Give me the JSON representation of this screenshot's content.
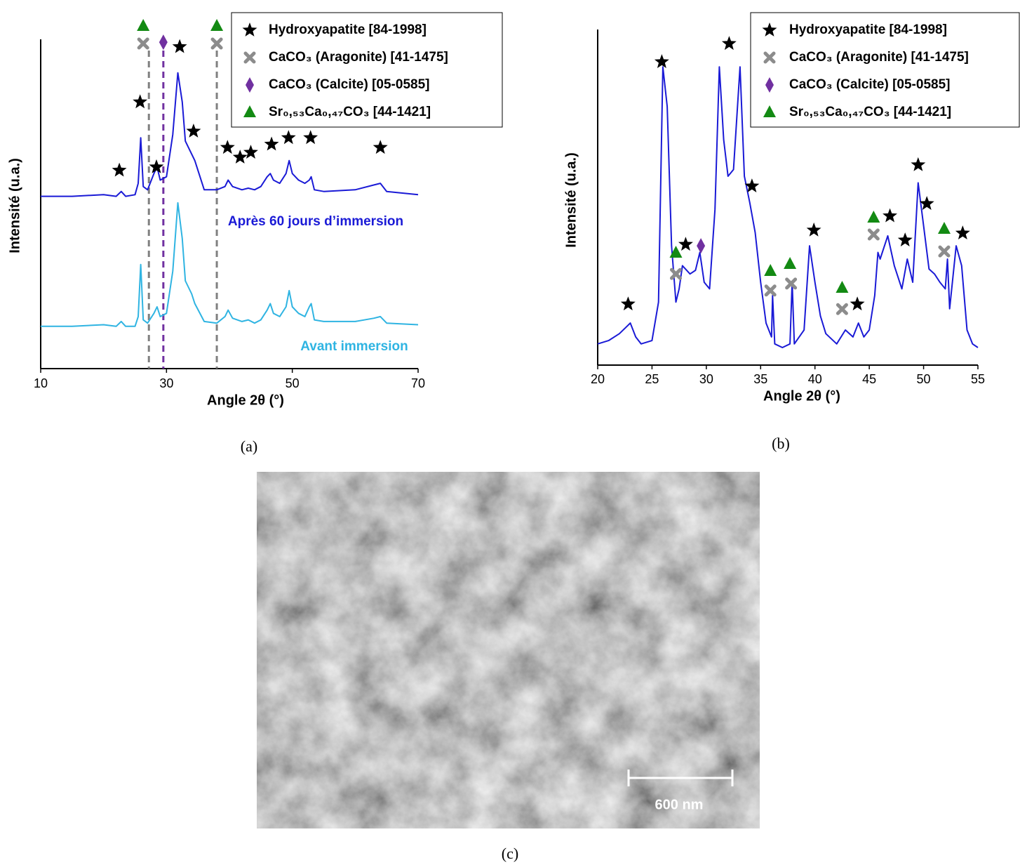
{
  "chart_data": [
    {
      "type": "line",
      "caption": "(a)",
      "xlabel": "Angle 2θ (°)",
      "ylabel": "Intensité (u.a.)",
      "xlim": [
        10,
        70
      ],
      "xticks": [
        10,
        30,
        50,
        70
      ],
      "ylim": [
        0,
        100
      ],
      "x": [
        10,
        15,
        20,
        22,
        22.8,
        23.5,
        25,
        25.5,
        25.9,
        26.3,
        27,
        28,
        28.5,
        29,
        30,
        31,
        31.8,
        32.5,
        33,
        34,
        34.5,
        36,
        38,
        39.3,
        39.8,
        40.5,
        42,
        43,
        44,
        45,
        46,
        46.5,
        47,
        48,
        49,
        49.5,
        50,
        51,
        52,
        52.7,
        53,
        53.5,
        55,
        60,
        63,
        64,
        65,
        70
      ],
      "series": [
        {
          "name": "Après 60 jours d’immersion",
          "color": "#1a1ad6",
          "values": [
            53,
            53,
            53.5,
            53,
            54.5,
            53,
            53.5,
            57,
            71,
            56,
            55,
            60,
            62,
            58,
            59,
            72,
            91,
            82,
            70,
            66,
            64,
            55,
            55,
            56,
            58,
            56,
            55,
            55.5,
            55,
            56,
            59,
            60,
            58,
            57,
            60,
            64,
            60,
            58,
            57,
            58,
            59,
            55,
            54.5,
            55,
            56.5,
            57,
            54.5,
            53.5
          ]
        },
        {
          "name": "Avant immersion",
          "color": "#2fb4e2",
          "values": [
            13,
            13,
            13.5,
            13,
            14.5,
            13,
            13,
            16,
            32,
            15,
            14,
            17,
            19,
            16,
            17,
            30,
            51,
            40,
            27,
            23,
            20,
            14.5,
            14,
            16,
            18,
            15.5,
            14.5,
            15,
            14,
            15,
            18,
            20,
            17,
            16,
            19,
            24,
            19,
            17,
            16,
            19,
            20,
            15,
            14.5,
            14.5,
            15.5,
            16,
            14,
            13.5
          ]
        }
      ],
      "reference_lines": [
        {
          "x": 27.2,
          "color": "#808080"
        },
        {
          "x": 29.5,
          "color": "#7030a0"
        },
        {
          "x": 38.0,
          "color": "#808080"
        }
      ],
      "phases": [
        {
          "name": "Hydroxyapatite [84-1998]",
          "marker": "star",
          "color": "#000000",
          "x": [
            22.5,
            25.8,
            28.4,
            32.1,
            34.3,
            39.7,
            41.7,
            43.4,
            46.7,
            49.4,
            52.9,
            64.0
          ],
          "y": [
            61,
            82,
            62,
            99,
            73,
            68,
            65,
            66.5,
            69,
            71,
            71,
            68
          ]
        },
        {
          "name": "CaCO₃ (Aragonite) [41-1475]",
          "marker": "cross",
          "color": "#8c8c8c",
          "x": [
            26.3,
            38.0
          ],
          "y": [
            100,
            100
          ]
        },
        {
          "name": "CaCO₃ (Calcite) [05-0585]",
          "marker": "diamond",
          "color": "#7030a0",
          "x": [
            29.5
          ],
          "y": [
            100.4
          ]
        },
        {
          "name": "Sr₀,₅₃Ca₀,₄₇CO₃ [44-1421]",
          "marker": "triangle",
          "color": "#138a13",
          "x": [
            26.3,
            38.0
          ],
          "y": [
            105.4,
            105.4
          ]
        }
      ]
    },
    {
      "type": "line",
      "caption": "(b)",
      "xlabel": "Angle 2θ (°)",
      "ylabel": "Intensité (u.a.)",
      "xlim": [
        20,
        55
      ],
      "xticks": [
        20,
        25,
        30,
        35,
        40,
        45,
        50,
        55
      ],
      "ylim": [
        0,
        100
      ],
      "x": [
        20,
        21,
        22,
        23,
        23.5,
        24,
        25,
        25.6,
        26,
        26.4,
        26.8,
        27.2,
        27.5,
        27.8,
        28.5,
        29,
        29.4,
        29.8,
        30.3,
        30.8,
        31.2,
        31.6,
        32,
        32.5,
        33.1,
        33.5,
        34,
        34.5,
        35,
        35.5,
        36,
        36.1,
        36.3,
        37,
        37.7,
        37.9,
        38.1,
        39,
        39.5,
        40,
        40.5,
        41,
        42,
        42.8,
        43.5,
        44,
        44.5,
        45,
        45.5,
        45.8,
        46,
        46.7,
        47.3,
        48,
        48.5,
        49,
        49.5,
        50,
        50.5,
        51,
        51.5,
        52,
        52.2,
        52.4,
        53,
        53.5,
        54,
        54.5,
        55
      ],
      "series": [
        {
          "color": "#1a1ad6",
          "values": [
            6.4,
            7.4,
            9.5,
            12.7,
            8.5,
            6.4,
            7.4,
            19,
            90,
            78,
            36,
            19,
            23,
            30,
            27.5,
            28.6,
            34,
            25,
            23,
            47,
            90,
            68,
            57,
            59,
            90,
            57,
            49,
            40,
            25,
            12.7,
            8.5,
            21,
            6.4,
            5.3,
            6.4,
            25,
            6.4,
            10.6,
            36,
            25,
            14.8,
            9.5,
            6.4,
            10.6,
            8.5,
            12.7,
            8.5,
            10.6,
            21,
            34,
            32,
            39,
            30,
            23,
            32,
            25,
            55,
            42,
            29,
            27.5,
            25,
            23,
            32,
            17,
            36,
            30,
            10.6,
            6.4,
            5.3
          ]
        }
      ],
      "phases": [
        {
          "name": "Hydroxyapatite [84-1998]",
          "marker": "star",
          "color": "#000000",
          "x": [
            22.8,
            25.9,
            28.1,
            32.1,
            34.2,
            39.9,
            43.9,
            46.9,
            48.3,
            49.5,
            50.3,
            53.6
          ],
          "y": [
            18.4,
            91.5,
            36.4,
            97,
            54,
            40.7,
            18.4,
            45,
            37.7,
            60.4,
            48.7,
            39.8
          ]
        },
        {
          "name": "CaCO₃ (Aragonite) [41-1475]",
          "marker": "cross",
          "color": "#8c8c8c",
          "x": [
            27.2,
            35.9,
            37.8,
            42.5,
            45.4,
            51.9
          ],
          "y": [
            27.5,
            22.5,
            24.6,
            16.9,
            39.4,
            34.3
          ]
        },
        {
          "name": "CaCO₃ (Calcite) [05-0585]",
          "marker": "diamond",
          "color": "#7030a0",
          "x": [
            29.5
          ],
          "y": [
            36
          ]
        },
        {
          "name": "Sr₀,₅₃Ca₀,₄₇CO₃ [44-1421]",
          "marker": "triangle",
          "color": "#138a13",
          "x": [
            27.2,
            35.9,
            37.7,
            42.5,
            45.4,
            51.9
          ],
          "y": [
            33.9,
            28.4,
            30.5,
            23.3,
            44.5,
            41.1
          ]
        }
      ]
    }
  ],
  "image": {
    "caption": "(c)",
    "scale_label": "600 nm"
  }
}
